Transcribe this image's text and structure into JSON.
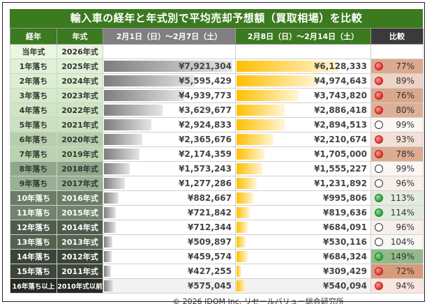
{
  "title": "輸入車の経年と年式別で平均売却予想額（買取相場）を比較",
  "headers": {
    "age": "経年",
    "model_year": "年式",
    "period1": "2月1日（日）～2月7日（土）",
    "period2": "2月8日（日）～2月14日（土）",
    "compare": "比較"
  },
  "max_value": 8000000,
  "rows": [
    {
      "age": "当年式",
      "year": "2026年式",
      "p1": null,
      "p1_value": 0,
      "p2": null,
      "p2_value": 0,
      "pct": null,
      "status": "none",
      "age_bg": "#e9f7df",
      "cmp_bg": "#ffffff",
      "dark_text": false
    },
    {
      "age": "1年落ち",
      "year": "2025年式",
      "p1": "¥7,921,304",
      "p1_value": 7921304,
      "p2": "¥6,128,333",
      "p2_value": 6128333,
      "pct": "77%",
      "status": "down",
      "age_bg": "#dff1d6",
      "cmp_bg": "#dca98e",
      "dark_text": false
    },
    {
      "age": "2年落ち",
      "year": "2024年式",
      "p1": "¥5,595,429",
      "p1_value": 5595429,
      "p2": "¥4,974,643",
      "p2_value": 4974643,
      "pct": "89%",
      "status": "down",
      "age_bg": "#dcefd2",
      "cmp_bg": "#ecd3c5",
      "dark_text": false
    },
    {
      "age": "3年落ち",
      "year": "2023年式",
      "p1": "¥4,939,773",
      "p1_value": 4939773,
      "p2": "¥3,743,820",
      "p2_value": 3743820,
      "pct": "76%",
      "status": "down",
      "age_bg": "#d4ebc9",
      "cmp_bg": "#dba78c",
      "dark_text": false
    },
    {
      "age": "4年落ち",
      "year": "2022年式",
      "p1": "¥3,629,677",
      "p1_value": 3629677,
      "p2": "¥2,886,418",
      "p2_value": 2886418,
      "pct": "80%",
      "status": "down",
      "age_bg": "#cfe5c4",
      "cmp_bg": "#ddb097",
      "dark_text": false
    },
    {
      "age": "5年落ち",
      "year": "2021年式",
      "p1": "¥2,924,833",
      "p1_value": 2924833,
      "p2": "¥2,894,513",
      "p2_value": 2894513,
      "pct": "99%",
      "status": "flat",
      "age_bg": "#cae2bf",
      "cmp_bg": "#fbf7f5",
      "dark_text": false
    },
    {
      "age": "6年落ち",
      "year": "2020年式",
      "p1": "¥2,365,676",
      "p1_value": 2365676,
      "p2": "¥2,210,674",
      "p2_value": 2210674,
      "pct": "93%",
      "status": "down",
      "age_bg": "#b6cfaa",
      "cmp_bg": "#f3e0d6",
      "dark_text": false
    },
    {
      "age": "7年落ち",
      "year": "2019年式",
      "p1": "¥2,174,359",
      "p1_value": 2174359,
      "p2": "¥1,705,000",
      "p2_value": 1705000,
      "pct": "78%",
      "status": "down",
      "age_bg": "#b8d3ae",
      "cmp_bg": "#dcab90",
      "dark_text": false
    },
    {
      "age": "8年落ち",
      "year": "2018年式",
      "p1": "¥1,573,243",
      "p1_value": 1573243,
      "p2": "¥1,555,227",
      "p2_value": 1555227,
      "pct": "99%",
      "status": "flat",
      "age_bg": "#8fa88a",
      "cmp_bg": "#fbf7f5",
      "dark_text": false
    },
    {
      "age": "9年落ち",
      "year": "2017年式",
      "p1": "¥1,277,286",
      "p1_value": 1277286,
      "p2": "¥1,231,892",
      "p2_value": 1231892,
      "pct": "96%",
      "status": "flat",
      "age_bg": "#98b094",
      "cmp_bg": "#f8efea",
      "dark_text": false
    },
    {
      "age": "10年落ち",
      "year": "2016年式",
      "p1": "¥882,667",
      "p1_value": 882667,
      "p2": "¥995,806",
      "p2_value": 995806,
      "pct": "113%",
      "status": "up",
      "age_bg": "#6a7d66",
      "cmp_bg": "#e3ecdf",
      "dark_text": true
    },
    {
      "age": "11年落ち",
      "year": "2015年式",
      "p1": "¥721,842",
      "p1_value": 721842,
      "p2": "¥819,636",
      "p2_value": 819636,
      "pct": "114%",
      "status": "up",
      "age_bg": "#71846d",
      "cmp_bg": "#e1ebdd",
      "dark_text": true
    },
    {
      "age": "12年落ち",
      "year": "2014年式",
      "p1": "¥712,344",
      "p1_value": 712344,
      "p2": "¥684,091",
      "p2_value": 684091,
      "pct": "96%",
      "status": "flat",
      "age_bg": "#4f5c4c",
      "cmp_bg": "#f8efea",
      "dark_text": true
    },
    {
      "age": "13年落ち",
      "year": "2013年式",
      "p1": "¥509,897",
      "p1_value": 509897,
      "p2": "¥530,116",
      "p2_value": 530116,
      "pct": "104%",
      "status": "flat",
      "age_bg": "#55624f",
      "cmp_bg": "#f6f8f4",
      "dark_text": true
    },
    {
      "age": "14年落ち",
      "year": "2012年式",
      "p1": "¥459,574",
      "p1_value": 459574,
      "p2": "¥684,324",
      "p2_value": 684324,
      "pct": "149%",
      "status": "up",
      "age_bg": "#3b4438",
      "cmp_bg": "#93b98a",
      "dark_text": true
    },
    {
      "age": "15年落ち",
      "year": "2011年式",
      "p1": "¥427,255",
      "p1_value": 427255,
      "p2": "¥309,429",
      "p2_value": 309429,
      "pct": "72%",
      "status": "down",
      "age_bg": "#3d463a",
      "cmp_bg": "#d79a7b",
      "dark_text": true
    },
    {
      "age": "16年落ち以上",
      "year": "2010年式以前",
      "p1": "¥575,045",
      "p1_value": 575045,
      "p2": "¥540,094",
      "p2_value": 540094,
      "pct": "94%",
      "status": "down",
      "age_bg": "#252b23",
      "cmp_bg": "#f8e6de",
      "dark_text": true
    }
  ],
  "status_icons": {
    "down": "red-circle-icon",
    "up": "green-circle-icon",
    "flat": "hollow-circle-icon"
  },
  "footer": "© 2026 IDOM Inc. リセールバリュー総合研究所"
}
